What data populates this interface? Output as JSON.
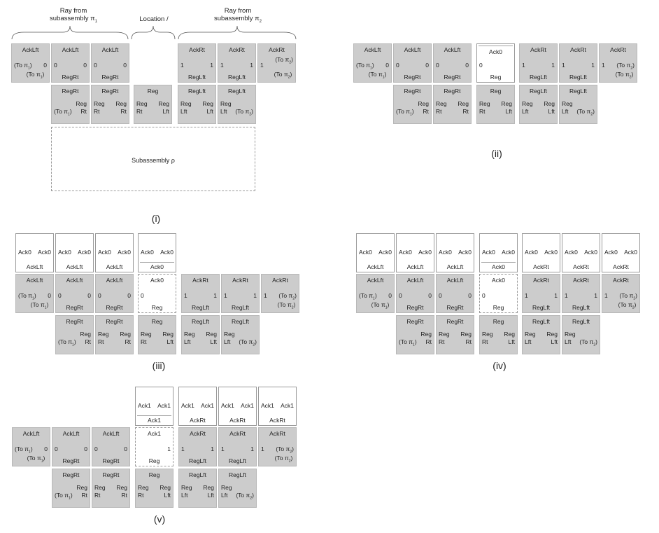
{
  "captions": [
    "(i)",
    "(ii)",
    "(iii)",
    "(iv)",
    "(v)"
  ],
  "headers": {
    "left_line1": "Ray from",
    "left_line2": "subassembly π",
    "left_sub": "1",
    "center": "Location /",
    "right_line1": "Ray from",
    "right_line2": "subassembly π",
    "right_sub": "2"
  },
  "subassembly_label": "Subassembly ρ",
  "tiles": {
    "ack_lft": "AckLft",
    "ack_rt": "AckRt",
    "reg_rt": "RegRt",
    "reg_lft": "RegLft",
    "reg": "Reg",
    "rt": "Rt",
    "lft": "Lft",
    "ack0": "Ack0",
    "ack1": "Ack1",
    "zero": "0",
    "one": "1",
    "to_pi1": "(To π",
    "to_pi2": "(To π",
    "pi1_sub": "1",
    "pi2_sub": "2",
    "close_paren": ")"
  }
}
